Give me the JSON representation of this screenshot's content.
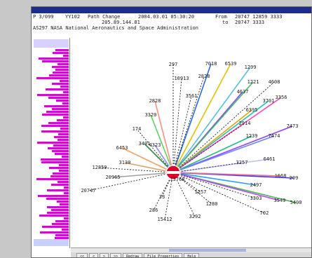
{
  "window": {
    "title": ""
  },
  "header": {
    "line1_date": "P 3/099",
    "line1_code": "YY102",
    "line1_label": "Path Change",
    "line1_ts": "2004.03.01 05:30:20",
    "line1_from_label": "From",
    "line1_from_value": "20747 12859 3333",
    "line2_addr": "205.89.144.81",
    "line2_to_label": "to",
    "line2_to_value": "20747 3333",
    "line3_text": "AS297 NASA National Aeronautics and Space Administration"
  },
  "graph": {
    "center_label": "",
    "accent": "#e0002a",
    "nodes": [
      {
        "label": "297"
      },
      {
        "label": "7018"
      },
      {
        "label": "6539"
      },
      {
        "label": "1299"
      },
      {
        "label": "10913"
      },
      {
        "label": "2828"
      },
      {
        "label": "3561"
      },
      {
        "label": "4637"
      },
      {
        "label": "1221"
      },
      {
        "label": "4608"
      },
      {
        "label": "6395"
      },
      {
        "label": "3701"
      },
      {
        "label": "3356"
      },
      {
        "label": "7473"
      },
      {
        "label": "2914"
      },
      {
        "label": "1239"
      },
      {
        "label": "7474"
      },
      {
        "label": "6461"
      },
      {
        "label": "3257"
      },
      {
        "label": "209"
      },
      {
        "label": "2497"
      },
      {
        "label": "1668"
      },
      {
        "label": "5400"
      },
      {
        "label": "3549"
      },
      {
        "label": "3303"
      },
      {
        "label": "702"
      },
      {
        "label": "13768"
      },
      {
        "label": "1280"
      },
      {
        "label": "1257"
      },
      {
        "label": "3292"
      },
      {
        "label": "2828"
      },
      {
        "label": "3320"
      },
      {
        "label": "174"
      },
      {
        "label": "6453"
      },
      {
        "label": "3491"
      },
      {
        "label": "4323"
      },
      {
        "label": "3130"
      },
      {
        "label": "20965"
      },
      {
        "label": "12859"
      },
      {
        "label": "20747"
      },
      {
        "label": "33"
      },
      {
        "label": "286"
      },
      {
        "label": "15412"
      }
    ]
  },
  "tabs": [
    "<<",
    "<",
    ">",
    ">>",
    "Redraw",
    "File Properties",
    "Help"
  ],
  "colors": {
    "accent": "#e0002a",
    "sidebar_bars": "#e000e0",
    "title_bg": "#1e2d8c"
  }
}
